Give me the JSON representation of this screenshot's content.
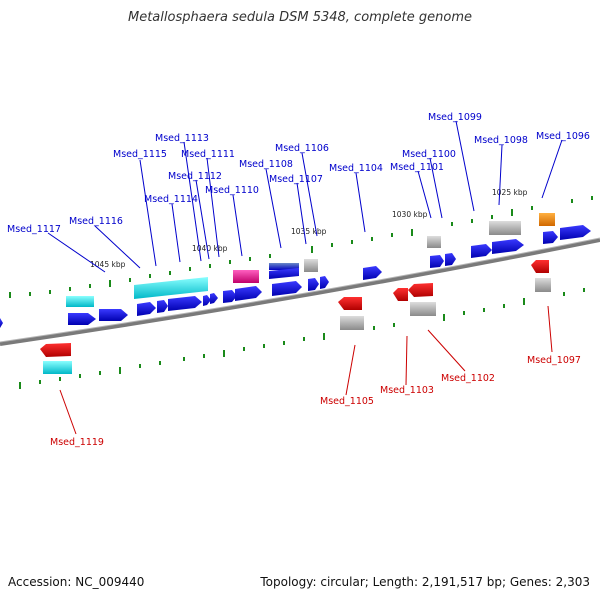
{
  "title": "Metallosphaera sedula DSM 5348, complete genome",
  "footer": {
    "accession": "Accession: NC_009440",
    "summary": "Topology: circular; Length: 2,191,517 bp; Genes: 2,303"
  },
  "colors": {
    "forward_label": "#0000cc",
    "reverse_label": "#cc0000",
    "backbone": "#808080",
    "ticks": "#1a8a1a"
  },
  "kbp_markers": [
    "1045 kbp",
    "1040 kbp",
    "1035 kbp",
    "1030 kbp",
    "1025 kbp"
  ],
  "genes": {
    "forward": [
      "Msed_1117",
      "Msed_1116",
      "Msed_1115",
      "Msed_1114",
      "Msed_1113",
      "Msed_1112",
      "Msed_1111",
      "Msed_1110",
      "Msed_1108",
      "Msed_1107",
      "Msed_1106",
      "Msed_1104",
      "Msed_1101",
      "Msed_1100",
      "Msed_1099",
      "Msed_1098",
      "Msed_1096"
    ],
    "reverse": [
      "Msed_1119",
      "Msed_1105",
      "Msed_1103",
      "Msed_1102",
      "Msed_1097"
    ]
  }
}
